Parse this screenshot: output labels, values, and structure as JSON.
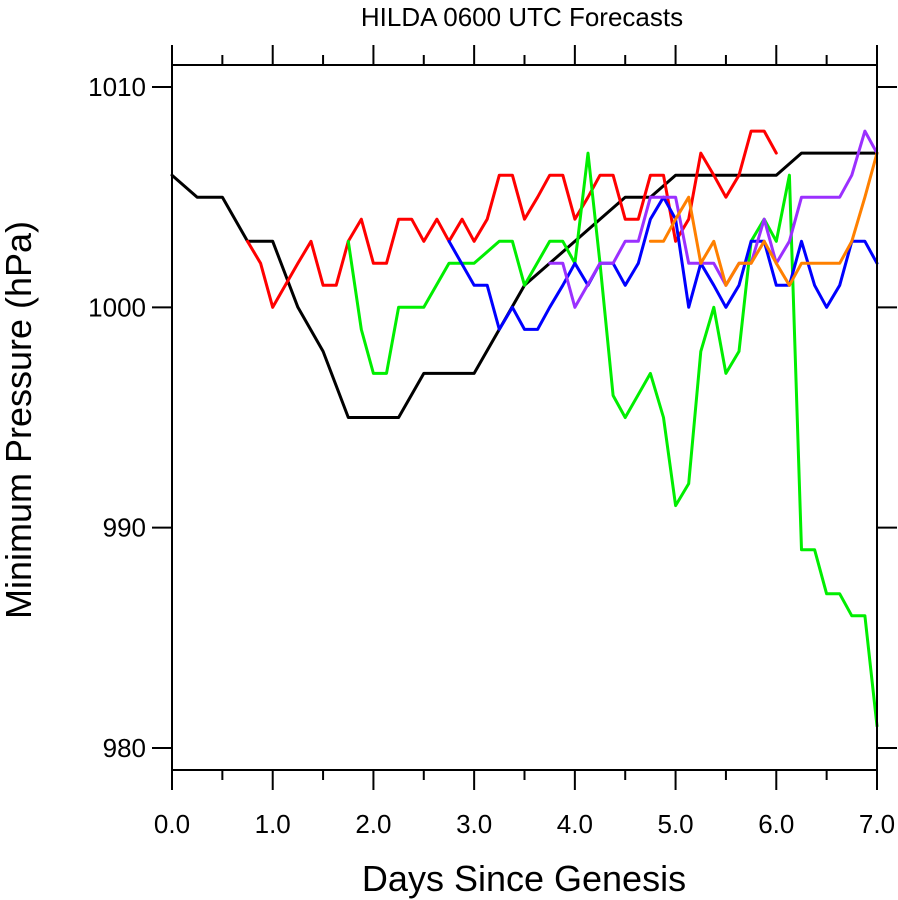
{
  "chart_data": {
    "type": "line",
    "title": "HILDA 0600 UTC Forecasts",
    "xlabel": "Days Since Genesis",
    "ylabel": "Minimum Pressure (hPa)",
    "xlim": [
      0,
      7
    ],
    "ylim": [
      979,
      1011
    ],
    "x_ticks": [
      0,
      1,
      2,
      3,
      4,
      5,
      6,
      7
    ],
    "x_tick_labels": [
      "0.0",
      "1.0",
      "2.0",
      "3.0",
      "4.0",
      "5.0",
      "6.0",
      "7.0"
    ],
    "y_ticks": [
      980,
      990,
      1000,
      1010
    ],
    "y_tick_labels": [
      "980",
      "990",
      "1000",
      "1010"
    ],
    "grid": false,
    "series": [
      {
        "color": "#000000",
        "x": [
          0,
          0.25,
          0.5,
          0.75,
          1.0,
          1.25,
          1.5,
          1.75,
          2.0,
          2.25,
          2.5,
          2.75,
          3.0,
          3.25,
          3.5,
          3.75,
          4.0,
          4.25,
          4.5,
          4.75,
          5.0,
          5.25,
          5.5,
          5.75,
          6.0,
          6.25,
          6.5,
          6.75,
          7.0
        ],
        "y": [
          1006,
          1005,
          1005,
          1003,
          1003,
          1000,
          998,
          995,
          995,
          995,
          997,
          997,
          997,
          999,
          1001,
          1002,
          1003,
          1004,
          1005,
          1005,
          1006,
          1006,
          1006,
          1006,
          1006,
          1007,
          1007,
          1007,
          1007
        ]
      },
      {
        "color": "#ff0000",
        "x": [
          0.75,
          0.88,
          1.0,
          1.25,
          1.38,
          1.5,
          1.63,
          1.75,
          1.88,
          2.0,
          2.13,
          2.25,
          2.38,
          2.5,
          2.63,
          2.75,
          2.88,
          3.0,
          3.13,
          3.25,
          3.38,
          3.5,
          3.63,
          3.75,
          3.88,
          4.0,
          4.13,
          4.25,
          4.38,
          4.5,
          4.63,
          4.75,
          4.88,
          5.0,
          5.13,
          5.25,
          5.38,
          5.5,
          5.63,
          5.75,
          5.88,
          6.0
        ],
        "y": [
          1003,
          1002,
          1000,
          1002,
          1003,
          1001,
          1001,
          1003,
          1004,
          1002,
          1002,
          1004,
          1004,
          1003,
          1004,
          1003,
          1004,
          1003,
          1004,
          1006,
          1006,
          1004,
          1005,
          1006,
          1006,
          1004,
          1005,
          1006,
          1006,
          1004,
          1004,
          1006,
          1006,
          1003,
          1004,
          1007,
          1006,
          1005,
          1006,
          1008,
          1008,
          1007
        ]
      },
      {
        "color": "#00ee00",
        "x": [
          1.75,
          1.88,
          2.0,
          2.13,
          2.25,
          2.5,
          2.75,
          3.0,
          3.25,
          3.38,
          3.5,
          3.75,
          3.88,
          4.0,
          4.13,
          4.25,
          4.38,
          4.5,
          4.75,
          4.88,
          5.0,
          5.13,
          5.25,
          5.38,
          5.5,
          5.63,
          5.75,
          5.88,
          6.0,
          6.13,
          6.25,
          6.38,
          6.5,
          6.63,
          6.75,
          6.88,
          7.0
        ],
        "y": [
          1003,
          999,
          997,
          997,
          1000,
          1000,
          1002,
          1002,
          1003,
          1003,
          1001,
          1003,
          1003,
          1002,
          1007,
          1002,
          996,
          995,
          997,
          995,
          991,
          992,
          998,
          1000,
          997,
          998,
          1003,
          1004,
          1003,
          1006,
          989,
          989,
          987,
          987,
          986,
          986,
          981
        ]
      },
      {
        "color": "#0000ff",
        "x": [
          2.75,
          3.0,
          3.13,
          3.25,
          3.38,
          3.5,
          3.63,
          3.75,
          3.88,
          4.0,
          4.13,
          4.25,
          4.38,
          4.5,
          4.63,
          4.75,
          4.88,
          5.0,
          5.13,
          5.25,
          5.38,
          5.5,
          5.63,
          5.75,
          5.88,
          6.0,
          6.13,
          6.25,
          6.38,
          6.5,
          6.63,
          6.75,
          6.88,
          7.0
        ],
        "y": [
          1003,
          1001,
          1001,
          999,
          1000,
          999,
          999,
          1000,
          1001,
          1002,
          1001,
          1002,
          1002,
          1001,
          1002,
          1004,
          1005,
          1004,
          1000,
          1002,
          1001,
          1000,
          1001,
          1003,
          1003,
          1001,
          1001,
          1003,
          1001,
          1000,
          1001,
          1003,
          1003,
          1002
        ]
      },
      {
        "color": "#9b30ff",
        "x": [
          3.75,
          3.88,
          4.0,
          4.25,
          4.38,
          4.5,
          4.63,
          4.75,
          4.88,
          5.0,
          5.13,
          5.25,
          5.38,
          5.5,
          5.63,
          5.75,
          5.88,
          6.0,
          6.13,
          6.25,
          6.38,
          6.5,
          6.63,
          6.75,
          6.88,
          7.0
        ],
        "y": [
          1002,
          1002,
          1000,
          1002,
          1002,
          1003,
          1003,
          1005,
          1005,
          1005,
          1002,
          1002,
          1002,
          1001,
          1002,
          1002,
          1004,
          1002,
          1003,
          1005,
          1005,
          1005,
          1005,
          1006,
          1008,
          1007
        ]
      },
      {
        "color": "#ff8000",
        "x": [
          4.75,
          4.88,
          5.0,
          5.13,
          5.25,
          5.38,
          5.5,
          5.63,
          5.75,
          5.88,
          6.0,
          6.13,
          6.25,
          6.38,
          6.5,
          6.63,
          6.75,
          6.88,
          7.0
        ],
        "y": [
          1003,
          1003,
          1004,
          1005,
          1002,
          1003,
          1001,
          1002,
          1002,
          1003,
          1002,
          1001,
          1002,
          1002,
          1002,
          1002,
          1003,
          1005,
          1007
        ]
      }
    ]
  }
}
